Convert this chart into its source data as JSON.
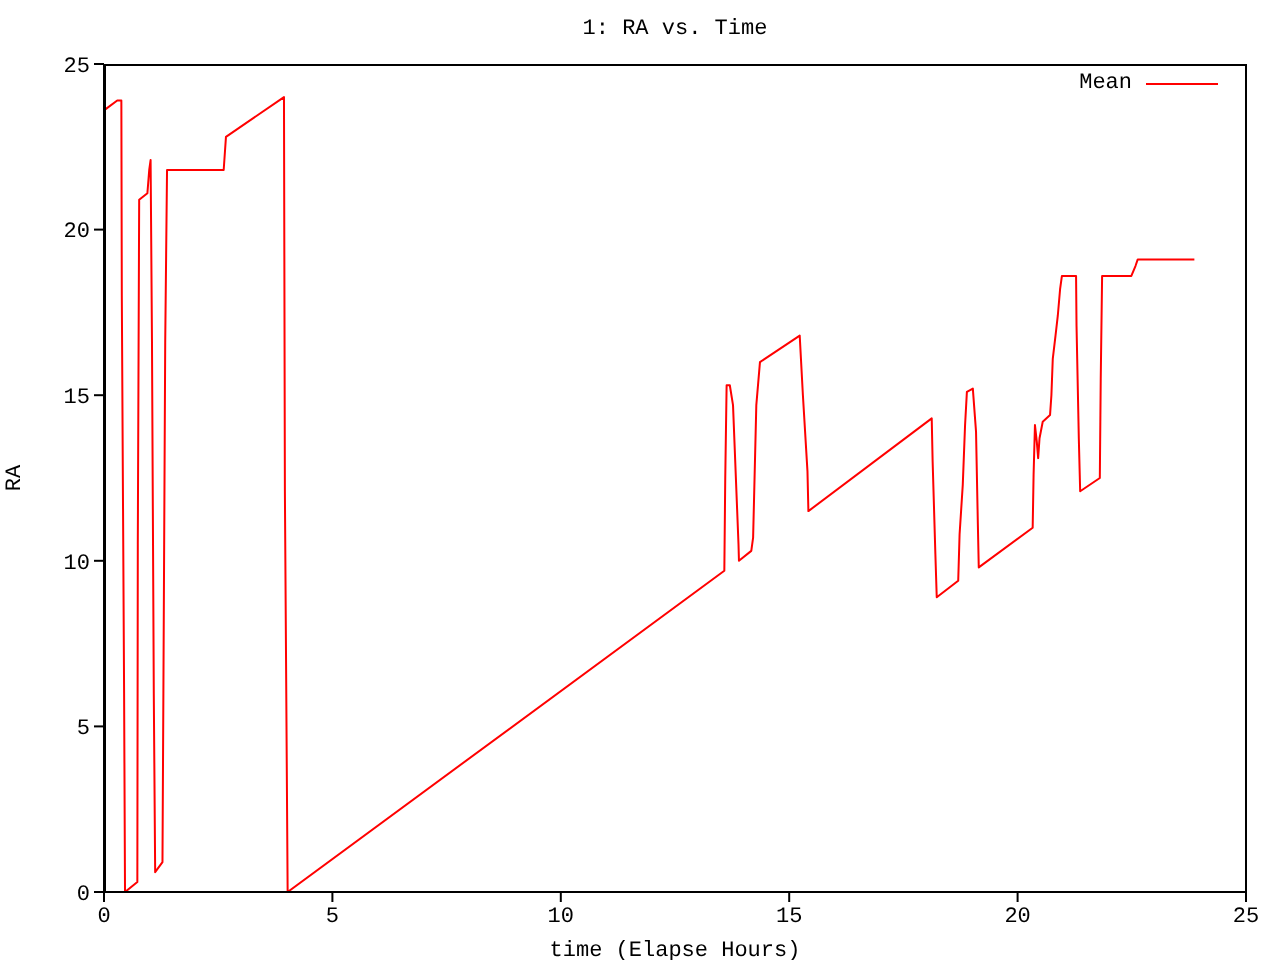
{
  "chart_data": {
    "type": "line",
    "title": "1: RA vs. Time",
    "xlabel": "time (Elapse Hours)",
    "ylabel": "RA",
    "x": [
      0,
      0.29,
      0.38,
      0.39,
      0.44,
      0.46,
      0.73,
      0.74,
      0.77,
      0.95,
      0.99,
      1.02,
      1.05,
      1.09,
      1.12,
      1.28,
      1.3,
      1.34,
      1.38,
      2.62,
      2.67,
      3.94,
      3.96,
      4.02,
      13.58,
      13.6,
      13.63,
      13.7,
      13.77,
      13.89,
      13.9,
      14.17,
      14.21,
      14.28,
      14.36,
      15.23,
      15.3,
      15.4,
      15.42,
      18.12,
      18.14,
      18.2,
      18.23,
      18.7,
      18.73,
      18.8,
      18.85,
      18.89,
      19.02,
      19.09,
      19.13,
      19.15,
      20.33,
      20.35,
      20.38,
      20.42,
      20.45,
      20.48,
      20.55,
      20.71,
      20.74,
      20.77,
      20.83,
      20.88,
      20.93,
      20.97,
      21.28,
      21.29,
      21.34,
      21.37,
      21.8,
      21.82,
      21.85,
      22.49,
      22.58,
      22.63,
      23.87
    ],
    "series": [
      {
        "name": "Mean",
        "color": "#ff0000",
        "values": [
          23.6,
          23.9,
          23.9,
          18.0,
          6.0,
          0,
          0.3,
          10.5,
          20.9,
          21.1,
          21.8,
          22.1,
          16.7,
          6.0,
          0.6,
          0.9,
          6.0,
          16.6,
          21.8,
          21.8,
          22.8,
          24.0,
          12.1,
          0,
          9.7,
          12.5,
          15.3,
          15.3,
          14.7,
          10.5,
          10.0,
          10.3,
          10.7,
          14.7,
          16.0,
          16.8,
          15.0,
          12.7,
          11.5,
          14.3,
          13.0,
          10.2,
          8.9,
          9.4,
          10.8,
          12.3,
          14.1,
          15.1,
          15.2,
          13.9,
          11.1,
          9.8,
          11.0,
          12.6,
          14.1,
          13.6,
          13.1,
          13.7,
          14.2,
          14.4,
          15.0,
          16.1,
          16.8,
          17.4,
          18.2,
          18.6,
          18.6,
          17.1,
          13.7,
          12.1,
          12.5,
          15.5,
          18.6,
          18.6,
          18.9,
          19.1,
          19.1
        ]
      }
    ],
    "xlim": [
      0,
      25
    ],
    "xticks": [
      0,
      5,
      10,
      15,
      20,
      25
    ],
    "ylim": [
      0,
      25
    ],
    "yticks": [
      0,
      5,
      10,
      15,
      20,
      25
    ],
    "legend": "top right"
  }
}
